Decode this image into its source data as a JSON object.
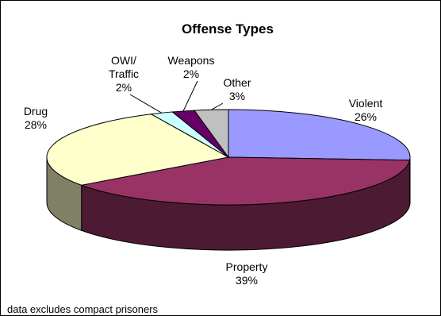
{
  "chart_data": {
    "type": "pie",
    "title": "Offense Types",
    "slices": [
      {
        "label": [
          "Violent"
        ],
        "pct_label": "26%",
        "value": 26,
        "color": "#9999ff",
        "side_color": "#4d4d80"
      },
      {
        "label": [
          "Property"
        ],
        "pct_label": "39%",
        "value": 39,
        "color": "#993366",
        "side_color": "#4d1a33"
      },
      {
        "label": [
          "Drug"
        ],
        "pct_label": "28%",
        "value": 28,
        "color": "#ffffcc",
        "side_color": "#808066"
      },
      {
        "label": [
          "OWI/",
          "Traffic"
        ],
        "pct_label": "2%",
        "value": 2,
        "color": "#ccffff",
        "side_color": "#668080"
      },
      {
        "label": [
          "Weapons"
        ],
        "pct_label": "2%",
        "value": 2,
        "color": "#660066",
        "side_color": "#330033"
      },
      {
        "label": [
          "Other"
        ],
        "pct_label": "3%",
        "value": 3,
        "color": "#c0c0c0",
        "side_color": "#606060"
      }
    ],
    "note": "data excludes compact prisoners"
  }
}
